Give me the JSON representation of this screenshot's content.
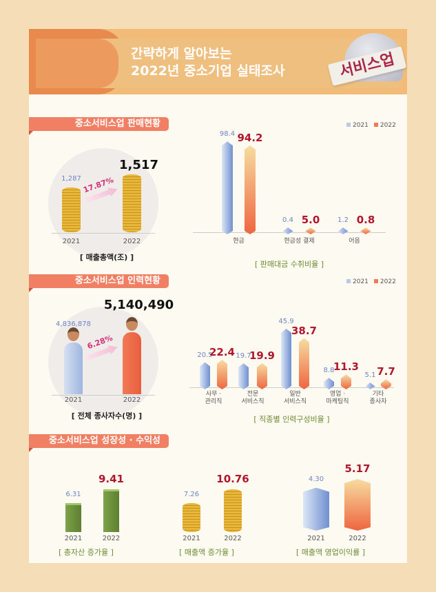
{
  "header": {
    "title_line1": "간략하게 알아보는",
    "title_line2": "2022년 중소기업 실태조사",
    "badge": "서비스업"
  },
  "colors": {
    "series_2021": "#8aa6d8",
    "series_2022": "#f07a55",
    "section": "#f07f63",
    "value_2022": "#b0162c"
  },
  "legend": [
    "2021",
    "2022"
  ],
  "sections": [
    {
      "title": "중소서비스업 판매현황"
    },
    {
      "title": "중소서비스업 인력현황"
    },
    {
      "title": "중소서비스업 성장성 · 수익성"
    }
  ],
  "chart_data": [
    {
      "type": "bar",
      "title": "[ 매출총액(조) ]",
      "categories": [
        "2021",
        "2022"
      ],
      "values": [
        1287,
        1517
      ],
      "value_labels": [
        "1,287",
        "1,517"
      ],
      "change_label": "17.87%",
      "icon": "coin-stack"
    },
    {
      "type": "bar",
      "title": "[ 판매대금 수취비율 ]",
      "categories": [
        "현금",
        "현금성 결제",
        "어음"
      ],
      "series": [
        {
          "name": "2021",
          "values": [
            98.4,
            0.4,
            1.2
          ]
        },
        {
          "name": "2022",
          "values": [
            94.2,
            5.0,
            0.8
          ]
        }
      ],
      "legend": "top-right"
    },
    {
      "type": "bar",
      "title": "[ 전체 종사자수(명) ]",
      "categories": [
        "2021",
        "2022"
      ],
      "values": [
        4836878,
        5140490
      ],
      "value_labels": [
        "4,836,878",
        "5,140,490"
      ],
      "change_label": "6.28%",
      "icon": "person"
    },
    {
      "type": "bar",
      "title": "[ 직종별 인력구성비율 ]",
      "categories": [
        "사무 · 관리직",
        "전문 서비스직",
        "일반 서비스직",
        "영업 · 마케팅직",
        "기타 종사자"
      ],
      "category_lines": [
        [
          "사무 ·",
          "관리직"
        ],
        [
          "전문",
          "서비스직"
        ],
        [
          "일반",
          "서비스직"
        ],
        [
          "영업 ·",
          "마케팅직"
        ],
        [
          "기타",
          "종사자"
        ]
      ],
      "series": [
        {
          "name": "2021",
          "values": [
            20.5,
            19.7,
            45.9,
            8.8,
            5.1
          ]
        },
        {
          "name": "2022",
          "values": [
            22.4,
            19.9,
            38.7,
            11.3,
            7.7
          ]
        }
      ],
      "legend": "top-right"
    },
    {
      "type": "bar",
      "title": "[ 총자산 증가율 ]",
      "categories": [
        "2021",
        "2022"
      ],
      "values": [
        6.31,
        9.41
      ],
      "value_labels": [
        "6.31",
        "9.41"
      ],
      "icon": "money-stack"
    },
    {
      "type": "bar",
      "title": "[ 매출액 증가율 ]",
      "categories": [
        "2021",
        "2022"
      ],
      "values": [
        7.26,
        10.76
      ],
      "value_labels": [
        "7.26",
        "10.76"
      ],
      "icon": "coin-stack"
    },
    {
      "type": "bar",
      "title": "[ 매출액 영업이익률 ]",
      "categories": [
        "2021",
        "2022"
      ],
      "values": [
        4.3,
        5.17
      ],
      "value_labels": [
        "4.30",
        "5.17"
      ],
      "icon": "3d-bar"
    }
  ]
}
